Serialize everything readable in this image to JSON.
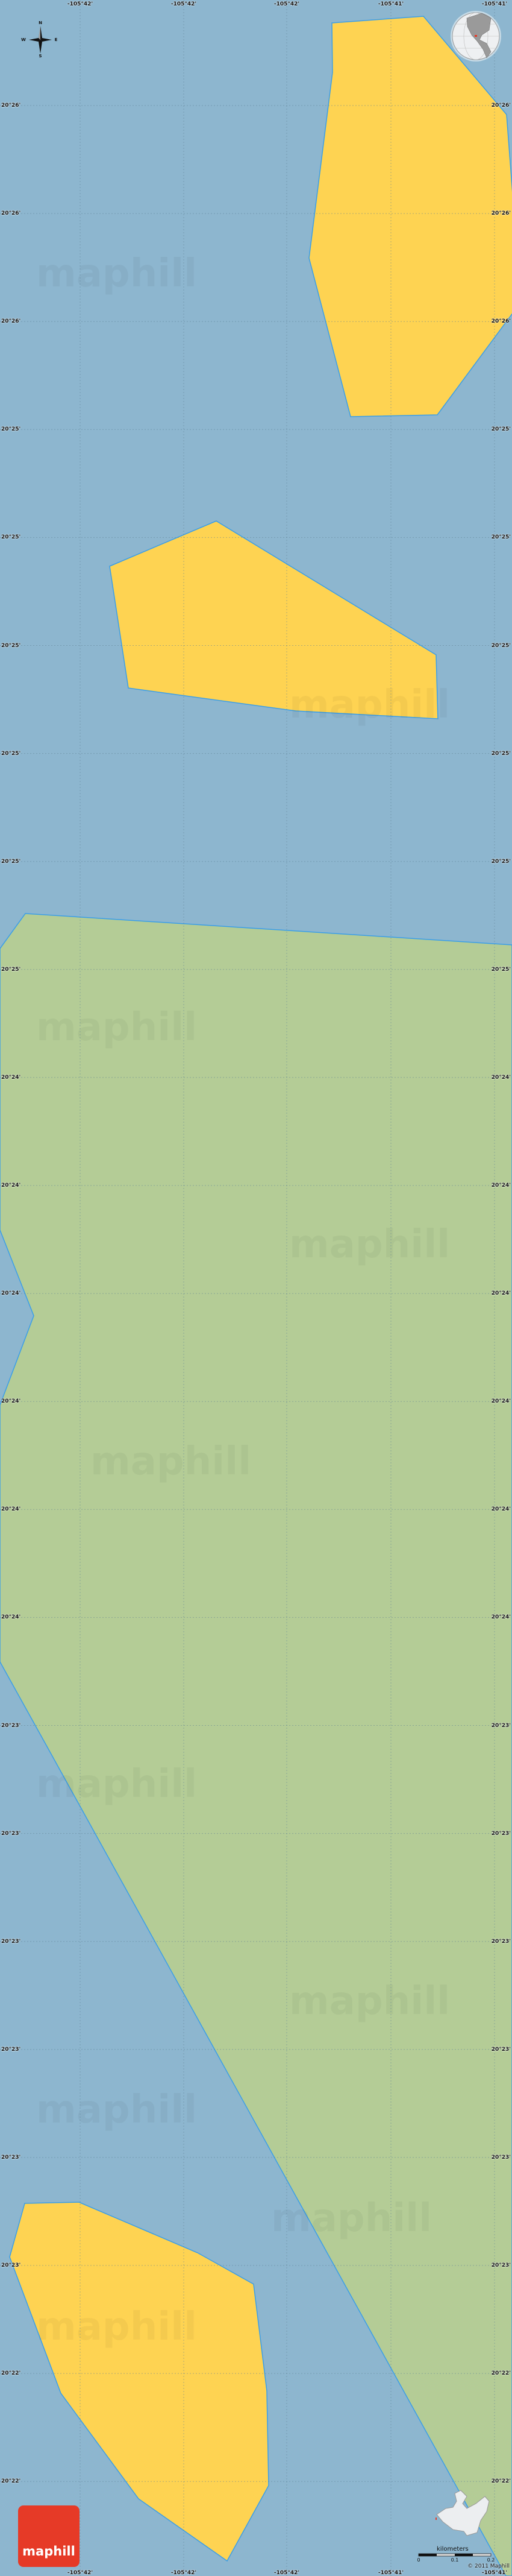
{
  "map": {
    "colors": {
      "water": "#8db6cf",
      "land": "#b4cc96",
      "island": "#fed352",
      "coastline": "#3a9ee8",
      "grid": "#6f8fa3"
    },
    "longitude_labels": [
      "-105°42'",
      "-105°42'",
      "-105°42'",
      "-105°41'",
      "-105°41'"
    ],
    "latitude_labels": [
      "20°26'",
      "20°26'",
      "20°26'",
      "20°25'",
      "20°25'",
      "20°25'",
      "20°25'",
      "20°25'",
      "20°25'",
      "20°24'",
      "20°24'",
      "20°24'",
      "20°24'",
      "20°24'",
      "20°24'",
      "20°23'",
      "20°23'",
      "20°23'",
      "20°23'",
      "20°23'",
      "20°23'",
      "20°22'",
      "20°22'"
    ],
    "watermark": "maphill"
  },
  "compass": {
    "n": "N",
    "s": "S",
    "e": "E",
    "w": "W",
    "icon": "compass-rose-icon"
  },
  "globe": {
    "icon": "globe-locator-icon"
  },
  "inset": {
    "icon": "region-locator-icon"
  },
  "scale_bar": {
    "title": "kilometers",
    "ticks": [
      "0",
      "0.1",
      "0.2"
    ]
  },
  "logo": {
    "text": "maphill"
  },
  "copyright": "© 2011 Maphill"
}
